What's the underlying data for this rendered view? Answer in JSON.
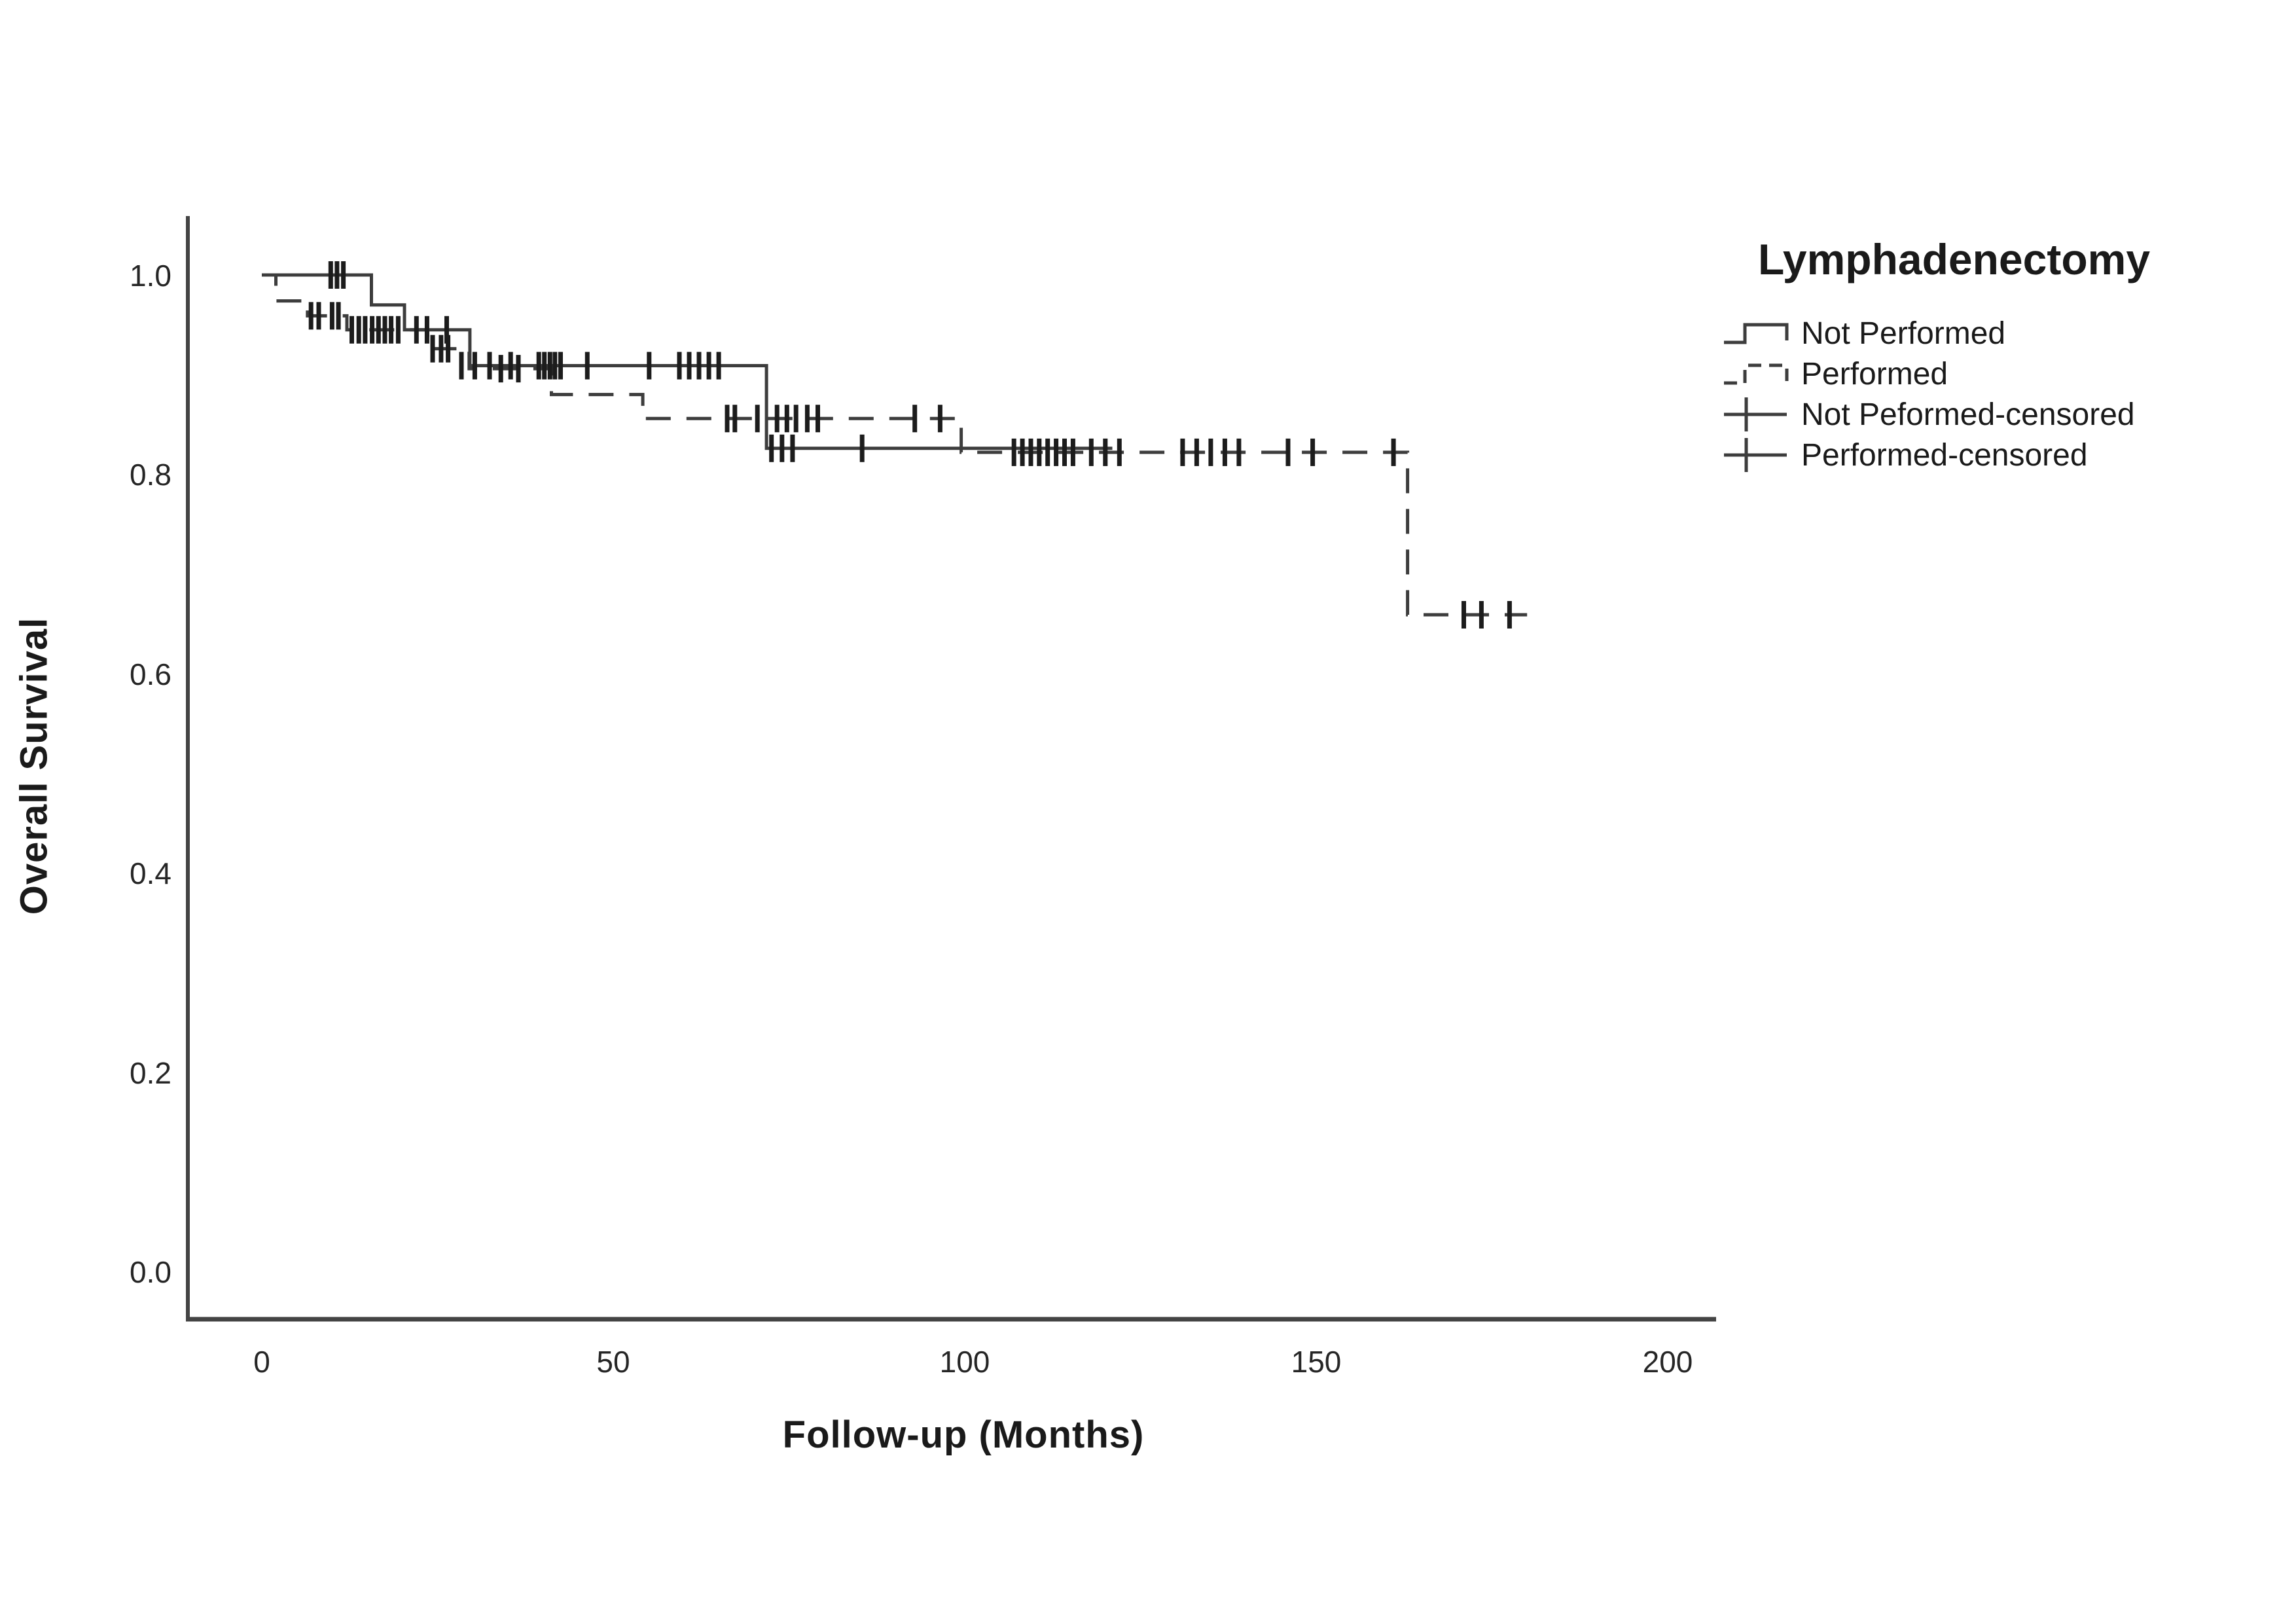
{
  "page": {
    "background": "#ffffff"
  },
  "chart_data": {
    "type": "line",
    "subtype": "kaplan-meier-step",
    "title": "",
    "xlabel": "Follow-up (Months)",
    "ylabel": "Overall Survival",
    "x_ticks": [
      "0",
      "50",
      "100",
      "150",
      "200"
    ],
    "x_tick_values": [
      0,
      50,
      100,
      150,
      200
    ],
    "y_ticks": [
      "1.0",
      "0.8",
      "0.6",
      "0.4",
      "0.2",
      "0.0"
    ],
    "y_tick_values": [
      1.0,
      0.8,
      0.6,
      0.4,
      0.2,
      0.0
    ],
    "xlim": [
      0,
      207
    ],
    "ylim": [
      0.0,
      1.0
    ],
    "grid": false,
    "legend_position": "right",
    "colors": {
      "line": "#3d3d3d",
      "censor": "#1c1c1c",
      "axis": "#444444",
      "text": "#1a1a1a"
    },
    "legend": {
      "title": "Lymphadenectomy",
      "items": [
        {
          "label": "Not Performed",
          "symbol": "step-solid"
        },
        {
          "label": "Performed",
          "symbol": "step-dashed"
        },
        {
          "label": "Not Peformed-censored",
          "symbol": "plus-line"
        },
        {
          "label": "Performed-censored",
          "symbol": "plus-line"
        }
      ]
    },
    "series": [
      {
        "name": "Not Performed",
        "style": "solid",
        "steps": [
          [
            0,
            1.0
          ],
          [
            15.6,
            0.97
          ],
          [
            20.3,
            0.945
          ],
          [
            29.6,
            0.909
          ],
          [
            71.8,
            0.826
          ]
        ],
        "end": 121,
        "censored": [
          [
            9.8,
            1.0
          ],
          [
            10.7,
            1.0
          ],
          [
            11.6,
            1.0
          ],
          [
            22.0,
            0.945
          ],
          [
            23.5,
            0.945
          ],
          [
            26.3,
            0.945
          ],
          [
            28.4,
            0.909
          ],
          [
            30.3,
            0.909
          ],
          [
            32.4,
            0.909
          ],
          [
            35.4,
            0.909
          ],
          [
            39.4,
            0.909
          ],
          [
            40.2,
            0.909
          ],
          [
            41.0,
            0.909
          ],
          [
            41.7,
            0.909
          ],
          [
            42.5,
            0.909
          ],
          [
            46.3,
            0.909
          ],
          [
            55.1,
            0.909
          ],
          [
            59.4,
            0.909
          ],
          [
            60.8,
            0.909
          ],
          [
            62.2,
            0.909
          ],
          [
            63.6,
            0.909
          ],
          [
            65.0,
            0.909
          ],
          [
            72.5,
            0.826
          ],
          [
            74.0,
            0.826
          ],
          [
            75.5,
            0.826
          ],
          [
            85.4,
            0.826
          ]
        ]
      },
      {
        "name": "Performed",
        "style": "dashed",
        "steps": [
          [
            0,
            1.0
          ],
          [
            2.0,
            0.974
          ],
          [
            6.5,
            0.959
          ],
          [
            12.1,
            0.945
          ],
          [
            23.6,
            0.926
          ],
          [
            29.5,
            0.906
          ],
          [
            41.2,
            0.88
          ],
          [
            54.2,
            0.856
          ],
          [
            99.5,
            0.822
          ],
          [
            163.0,
            0.659
          ]
        ],
        "end": 180,
        "censored": [
          [
            7.0,
            0.959
          ],
          [
            8.1,
            0.959
          ],
          [
            10.0,
            0.959
          ],
          [
            10.9,
            0.959
          ],
          [
            12.8,
            0.945
          ],
          [
            13.8,
            0.945
          ],
          [
            14.7,
            0.945
          ],
          [
            15.7,
            0.945
          ],
          [
            16.6,
            0.945
          ],
          [
            17.5,
            0.945
          ],
          [
            18.4,
            0.945
          ],
          [
            19.4,
            0.945
          ],
          [
            24.3,
            0.926
          ],
          [
            25.5,
            0.926
          ],
          [
            26.5,
            0.926
          ],
          [
            34.0,
            0.906
          ],
          [
            36.5,
            0.906
          ],
          [
            66.2,
            0.856
          ],
          [
            67.3,
            0.856
          ],
          [
            70.5,
            0.856
          ],
          [
            73.3,
            0.856
          ],
          [
            74.7,
            0.856
          ],
          [
            76.0,
            0.856
          ],
          [
            77.6,
            0.856
          ],
          [
            79.1,
            0.856
          ],
          [
            92.9,
            0.856
          ],
          [
            96.5,
            0.856
          ],
          [
            107.0,
            0.822
          ],
          [
            108.2,
            0.822
          ],
          [
            109.4,
            0.822
          ],
          [
            110.6,
            0.822
          ],
          [
            111.8,
            0.822
          ],
          [
            113.0,
            0.822
          ],
          [
            114.2,
            0.822
          ],
          [
            115.4,
            0.822
          ],
          [
            118.0,
            0.822
          ],
          [
            120.0,
            0.822
          ],
          [
            122.0,
            0.822
          ],
          [
            131.0,
            0.822
          ],
          [
            133.0,
            0.822
          ],
          [
            135.0,
            0.822
          ],
          [
            137.0,
            0.822
          ],
          [
            139.0,
            0.822
          ],
          [
            146.0,
            0.822
          ],
          [
            149.5,
            0.822
          ],
          [
            161.0,
            0.822
          ],
          [
            171.0,
            0.659
          ],
          [
            173.5,
            0.659
          ],
          [
            177.5,
            0.659
          ]
        ]
      }
    ]
  }
}
